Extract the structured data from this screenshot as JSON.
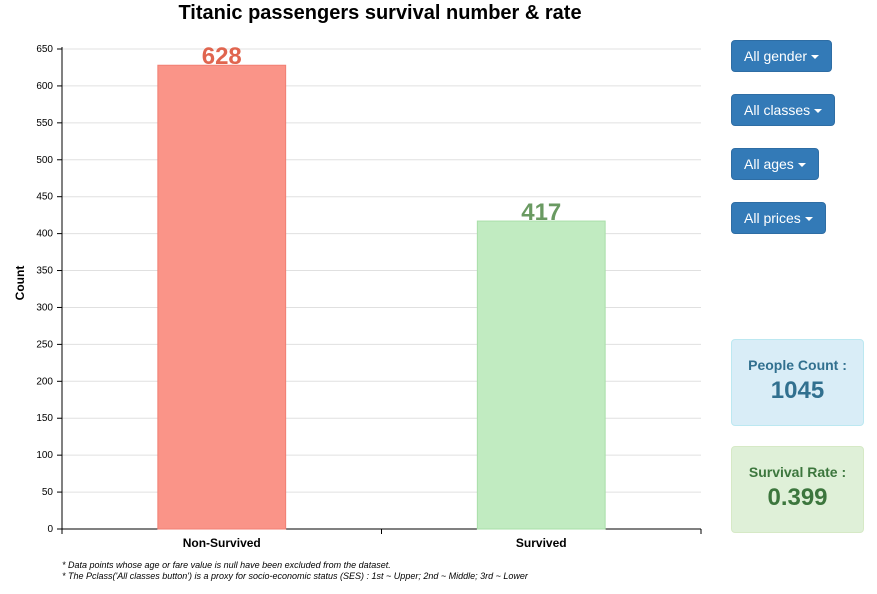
{
  "chart_data": {
    "type": "bar",
    "title": "Titanic passengers survival number & rate",
    "categories": [
      "Non-Survived",
      "Survived"
    ],
    "values": [
      628,
      417
    ],
    "colors": [
      "#fa9488",
      "#c1ebc1"
    ],
    "stroke_colors": [
      "#f17f73",
      "#a9dfa9"
    ],
    "label_colors": [
      "#e0654f",
      "#6a9a62"
    ],
    "xlabel": "",
    "ylabel": "Count",
    "ylim": [
      0,
      650
    ],
    "yticks": [
      0,
      50,
      100,
      150,
      200,
      250,
      300,
      350,
      400,
      450,
      500,
      550,
      600,
      650
    ],
    "grid": true,
    "legend": "none"
  },
  "filters": {
    "gender": "All gender",
    "classes": "All classes",
    "ages": "All ages",
    "prices": "All prices"
  },
  "stats": {
    "people_count_label": "People Count :",
    "people_count_value": "1045",
    "survival_rate_label": "Survival Rate :",
    "survival_rate_value": "0.399"
  },
  "footnotes": {
    "note1": "* Data points whose age or fare value is null have been excluded from the dataset.",
    "note2": "* The Pclass('All classes button') is a proxy for socio-economic status (SES) : 1st ~ Upper; 2nd ~ Middle; 3rd ~ Lower"
  },
  "colors": {
    "button": "#337ab7",
    "info_bg": "#d9edf7",
    "info_text": "#31708f",
    "success_bg": "#dff0d8",
    "success_text": "#3c763d"
  }
}
